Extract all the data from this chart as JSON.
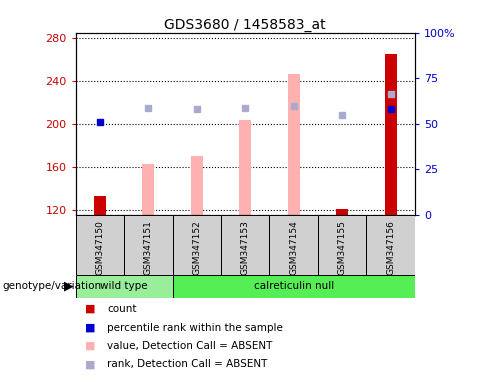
{
  "title": "GDS3680 / 1458583_at",
  "samples": [
    "GSM347150",
    "GSM347151",
    "GSM347152",
    "GSM347153",
    "GSM347154",
    "GSM347155",
    "GSM347156"
  ],
  "ylim_left": [
    115,
    285
  ],
  "ylim_right": [
    0,
    100
  ],
  "yticks_left": [
    120,
    160,
    200,
    240,
    280
  ],
  "yticks_right": [
    0,
    25,
    50,
    75,
    100
  ],
  "yticklabels_right": [
    "0",
    "25",
    "50",
    "75",
    "100%"
  ],
  "count_values": [
    133,
    null,
    null,
    null,
    null,
    121,
    265
  ],
  "count_color": "#cc0000",
  "percentile_rank_values": [
    51,
    null,
    null,
    null,
    null,
    null,
    58
  ],
  "percentile_rank_color": "#0000cc",
  "absent_value_values": [
    null,
    163,
    170,
    204,
    246,
    null,
    null
  ],
  "absent_value_color": "#ffb0b0",
  "absent_rank_values": [
    null,
    215,
    214,
    215,
    217,
    208,
    228
  ],
  "absent_rank_color": "#aaaacc",
  "bar_width": 0.25,
  "background_color": "#ffffff",
  "left_tick_color": "#cc0000",
  "right_tick_color": "#0000cc",
  "wt_color": "#99ee99",
  "cn_color": "#55ee55",
  "sample_box_color": "#d0d0d0",
  "legend_items": [
    {
      "label": "count",
      "color": "#cc0000"
    },
    {
      "label": "percentile rank within the sample",
      "color": "#0000cc"
    },
    {
      "label": "value, Detection Call = ABSENT",
      "color": "#ffb0b0"
    },
    {
      "label": "rank, Detection Call = ABSENT",
      "color": "#aaaacc"
    }
  ]
}
